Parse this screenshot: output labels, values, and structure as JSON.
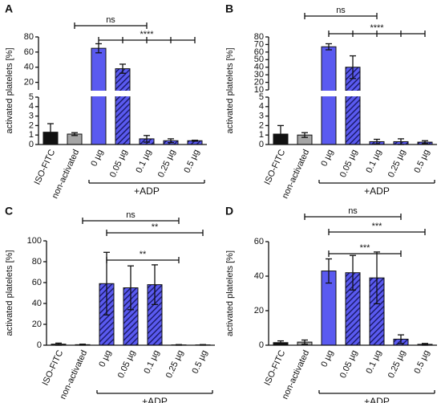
{
  "chart_data": [
    {
      "type": "bar",
      "label": "A",
      "y_label": "activated platelets [%]",
      "categories": [
        "ISO-FITC",
        "non-activated",
        "0 µg",
        "0.05 µg",
        "0.1 µg",
        "0.25 µg",
        "0.5 µg"
      ],
      "values": [
        1.3,
        1.1,
        65,
        38,
        0.6,
        0.4,
        0.4
      ],
      "errors": [
        0.9,
        0.15,
        6,
        6,
        0.35,
        0.2,
        0.05
      ],
      "colors": [
        "#111111",
        "#a6a6a6",
        "#5a5af0",
        "#5a5af0",
        "#5a5af0",
        "#5a5af0",
        "#5a5af0"
      ],
      "hatched": [
        false,
        false,
        false,
        true,
        true,
        true,
        true
      ],
      "hatch_color": "#1c1c6e",
      "ylim": [
        0,
        5
      ],
      "yticks": [
        0,
        1,
        2,
        3,
        4,
        5
      ],
      "y_break": {
        "ylim": [
          10,
          80
        ],
        "yticks": [
          20,
          40,
          60,
          80
        ]
      },
      "brackets": [
        {
          "label": "ns",
          "from": "non-activated",
          "to": "0.1 µg",
          "every_category": false
        },
        {
          "label": "****",
          "from": "0 µg",
          "to": "0.5 µg",
          "every_category": true
        }
      ],
      "group": {
        "label": "+ADP",
        "from": "0 µg",
        "to": "0.5 µg"
      }
    },
    {
      "type": "bar",
      "label": "B",
      "y_label": "activated platelets [%]",
      "categories": [
        "ISO-FITC",
        "non-activated",
        "0 µg",
        "0.05 µg",
        "0.1 µg",
        "0.25 µg",
        "0.5 µg"
      ],
      "values": [
        1.1,
        1.0,
        67,
        40,
        0.3,
        0.3,
        0.25
      ],
      "errors": [
        0.9,
        0.25,
        4,
        15,
        0.25,
        0.3,
        0.15
      ],
      "colors": [
        "#111111",
        "#a6a6a6",
        "#5a5af0",
        "#5a5af0",
        "#5a5af0",
        "#5a5af0",
        "#5a5af0"
      ],
      "hatched": [
        false,
        false,
        false,
        true,
        true,
        true,
        true
      ],
      "hatch_color": "#1c1c6e",
      "ylim": [
        0,
        5
      ],
      "yticks": [
        0,
        1,
        2,
        3,
        4,
        5
      ],
      "y_break": {
        "ylim": [
          10,
          80
        ],
        "yticks": [
          10,
          20,
          30,
          40,
          50,
          60,
          70,
          80
        ]
      },
      "brackets": [
        {
          "label": "ns",
          "from": "non-activated",
          "to": "0.1 µg",
          "every_category": false
        },
        {
          "label": "****",
          "from": "0 µg",
          "to": "0.5 µg",
          "every_category": true
        }
      ],
      "group": {
        "label": "+ADP",
        "from": "0 µg",
        "to": "0.5 µg"
      }
    },
    {
      "type": "bar",
      "label": "C",
      "y_label": "activated platelets [%]",
      "categories": [
        "ISO-FITC",
        "non-activated",
        "0 µg",
        "0.05 µg",
        "0.1 µg",
        "0.25 µg",
        "0.5 µg"
      ],
      "values": [
        1,
        0.5,
        59,
        55,
        58,
        0.3,
        0.3
      ],
      "errors": [
        1,
        0.5,
        30,
        21,
        19,
        0.3,
        0.3
      ],
      "colors": [
        "#111111",
        "#a6a6a6",
        "#5a5af0",
        "#5a5af0",
        "#5a5af0",
        "#5a5af0",
        "#5a5af0"
      ],
      "hatched": [
        false,
        false,
        true,
        true,
        true,
        true,
        true
      ],
      "hatch_color": "#1c1c6e",
      "ylim": [
        0,
        100
      ],
      "yticks": [
        0,
        20,
        40,
        60,
        80,
        100
      ],
      "brackets": [
        {
          "label": "ns",
          "from": "non-activated",
          "to": "0.25 µg",
          "every_category": false
        },
        {
          "label": "**",
          "from": "0 µg",
          "to": "0.5 µg",
          "every_category": false
        },
        {
          "label": "**",
          "from": "0 µg",
          "to": "0.25 µg",
          "every_category": false
        }
      ],
      "group": {
        "label": "+ADP",
        "from": "0 µg",
        "to": "0.5 µg"
      }
    },
    {
      "type": "bar",
      "label": "D",
      "y_label": "activated platelets [%]",
      "categories": [
        "ISO-FITC",
        "non-activated",
        "0 µg",
        "0.05 µg",
        "0.1 µg",
        "0.25 µg",
        "0.5 µg"
      ],
      "values": [
        1.5,
        1.8,
        43,
        42,
        39,
        3.5,
        0.5
      ],
      "errors": [
        1,
        1.2,
        7,
        10,
        15,
        2.5,
        0.5
      ],
      "colors": [
        "#111111",
        "#a6a6a6",
        "#5a5af0",
        "#5a5af0",
        "#5a5af0",
        "#5a5af0",
        "#5a5af0"
      ],
      "hatched": [
        false,
        false,
        false,
        true,
        true,
        true,
        true
      ],
      "hatch_color": "#1c1c6e",
      "ylim": [
        0,
        60
      ],
      "yticks": [
        0,
        20,
        40,
        60
      ],
      "brackets": [
        {
          "label": "ns",
          "from": "non-activated",
          "to": "0.25 µg",
          "every_category": false
        },
        {
          "label": "***",
          "from": "0 µg",
          "to": "0.5 µg",
          "every_category": false
        },
        {
          "label": "***",
          "from": "0 µg",
          "to": "0.25 µg",
          "every_category": false
        }
      ],
      "group": {
        "label": "+ADP",
        "from": "0 µg",
        "to": "0.5 µg"
      }
    }
  ]
}
